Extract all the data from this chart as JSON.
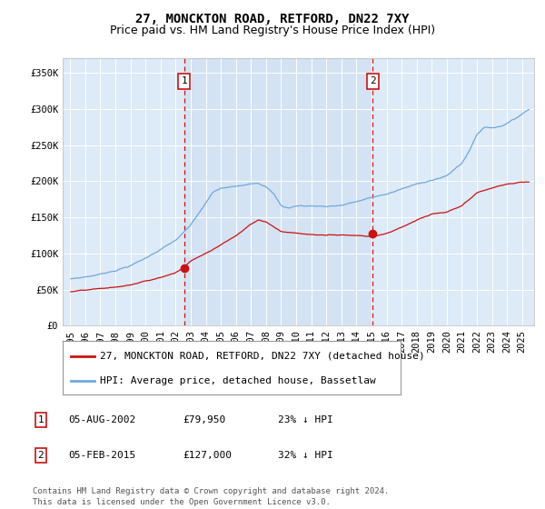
{
  "title": "27, MONCKTON ROAD, RETFORD, DN22 7XY",
  "subtitle": "Price paid vs. HM Land Registry's House Price Index (HPI)",
  "background_color": "#ffffff",
  "plot_bg_color": "#ddeaf7",
  "grid_color": "#ffffff",
  "sale1_date_label": "05-AUG-2002",
  "sale1_price_label": "£79,950",
  "sale1_pct": "23% ↓ HPI",
  "sale2_date_label": "05-FEB-2015",
  "sale2_price_label": "£127,000",
  "sale2_pct": "32% ↓ HPI",
  "legend_house": "27, MONCKTON ROAD, RETFORD, DN22 7XY (detached house)",
  "legend_hpi": "HPI: Average price, detached house, Bassetlaw",
  "footer": "Contains HM Land Registry data © Crown copyright and database right 2024.\nThis data is licensed under the Open Government Licence v3.0.",
  "sale1_x": 2002.58,
  "sale1_y": 79950,
  "sale2_x": 2015.09,
  "sale2_y": 127000,
  "ylim": [
    0,
    370000
  ],
  "yticks": [
    0,
    50000,
    100000,
    150000,
    200000,
    250000,
    300000,
    350000
  ],
  "ytick_labels": [
    "£0",
    "£50K",
    "£100K",
    "£150K",
    "£200K",
    "£250K",
    "£300K",
    "£350K"
  ],
  "xlim_start": 1994.5,
  "xlim_end": 2025.8,
  "title_fontsize": 10,
  "subtitle_fontsize": 9,
  "axis_fontsize": 7.5,
  "legend_fontsize": 8,
  "anno_fontsize": 8,
  "footer_fontsize": 6.5
}
